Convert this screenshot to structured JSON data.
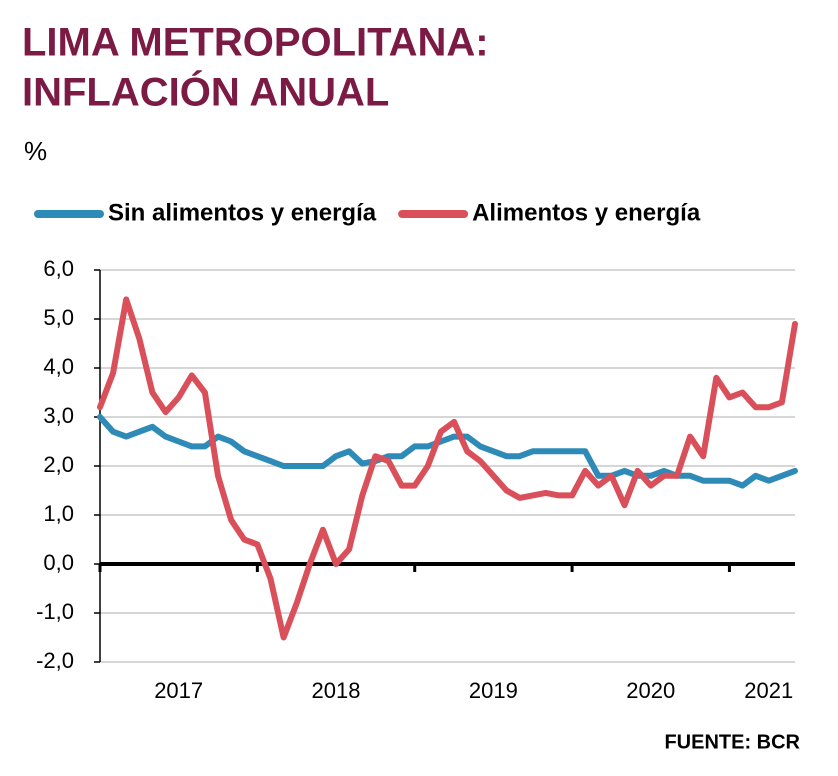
{
  "chart_data": {
    "type": "line",
    "title": [
      "LIMA METROPOLITANA:",
      "INFLACIÓN ANUAL"
    ],
    "y_unit": "%",
    "source": "FUENTE: BCR",
    "x": [
      2017.0,
      2017.0833,
      2017.1667,
      2017.25,
      2017.3333,
      2017.4167,
      2017.5,
      2017.5833,
      2017.6667,
      2017.75,
      2017.8333,
      2017.9167,
      2018.0,
      2018.0833,
      2018.1667,
      2018.25,
      2018.3333,
      2018.4167,
      2018.5,
      2018.5833,
      2018.6667,
      2018.75,
      2018.8333,
      2018.9167,
      2019.0,
      2019.0833,
      2019.1667,
      2019.25,
      2019.3333,
      2019.4167,
      2019.5,
      2019.5833,
      2019.6667,
      2019.75,
      2019.8333,
      2019.9167,
      2020.0,
      2020.0833,
      2020.1667,
      2020.25,
      2020.3333,
      2020.4167,
      2020.5,
      2020.5833,
      2020.6667,
      2020.75,
      2020.8333,
      2020.9167,
      2021.0,
      2021.0833,
      2021.1667,
      2021.25,
      2021.3333,
      2021.4167
    ],
    "xlim": [
      2017.0,
      2021.4167
    ],
    "xticks": [
      {
        "value": 2017.5,
        "label": "2017"
      },
      {
        "value": 2018.5,
        "label": "2018"
      },
      {
        "value": 2019.5,
        "label": "2019"
      },
      {
        "value": 2020.5,
        "label": "2020"
      },
      {
        "value": 2021.25,
        "label": "2021"
      }
    ],
    "ylim": [
      -2,
      6
    ],
    "yticks": [
      {
        "value": -2,
        "label": "-2,0"
      },
      {
        "value": -1,
        "label": "-1,0"
      },
      {
        "value": 0,
        "label": "0,0"
      },
      {
        "value": 1,
        "label": "1,0"
      },
      {
        "value": 2,
        "label": "2,0"
      },
      {
        "value": 3,
        "label": "3,0"
      },
      {
        "value": 4,
        "label": "4,0"
      },
      {
        "value": 5,
        "label": "5,0"
      },
      {
        "value": 6,
        "label": "6,0"
      }
    ],
    "grid": true,
    "legend": "top",
    "series": [
      {
        "name": "Sin alimentos y energía",
        "color": "#2e8bb8",
        "values": [
          3.0,
          2.7,
          2.6,
          2.7,
          2.8,
          2.6,
          2.5,
          2.4,
          2.4,
          2.6,
          2.5,
          2.3,
          2.2,
          2.1,
          2.0,
          2.0,
          2.0,
          2.0,
          2.2,
          2.3,
          2.05,
          2.1,
          2.2,
          2.2,
          2.4,
          2.4,
          2.5,
          2.6,
          2.6,
          2.4,
          2.3,
          2.2,
          2.2,
          2.3,
          2.3,
          2.3,
          2.3,
          2.3,
          1.8,
          1.8,
          1.9,
          1.8,
          1.8,
          1.9,
          1.8,
          1.8,
          1.7,
          1.7,
          1.7,
          1.6,
          1.8,
          1.7,
          1.8,
          1.9
        ]
      },
      {
        "name": "Alimentos y energía",
        "color": "#d9505a",
        "values": [
          3.2,
          3.9,
          5.4,
          4.6,
          3.5,
          3.1,
          3.4,
          3.85,
          3.5,
          1.8,
          0.9,
          0.5,
          0.4,
          -0.3,
          -1.5,
          -0.8,
          0.0,
          0.7,
          0.0,
          0.3,
          1.4,
          2.2,
          2.1,
          1.6,
          1.6,
          2.0,
          2.7,
          2.9,
          2.3,
          2.1,
          1.8,
          1.5,
          1.35,
          1.4,
          1.45,
          1.4,
          1.4,
          1.9,
          1.6,
          1.8,
          1.2,
          1.9,
          1.6,
          1.8,
          1.8,
          2.6,
          2.2,
          3.8,
          3.4,
          3.5,
          3.2,
          3.2,
          3.3,
          4.9
        ]
      }
    ]
  }
}
